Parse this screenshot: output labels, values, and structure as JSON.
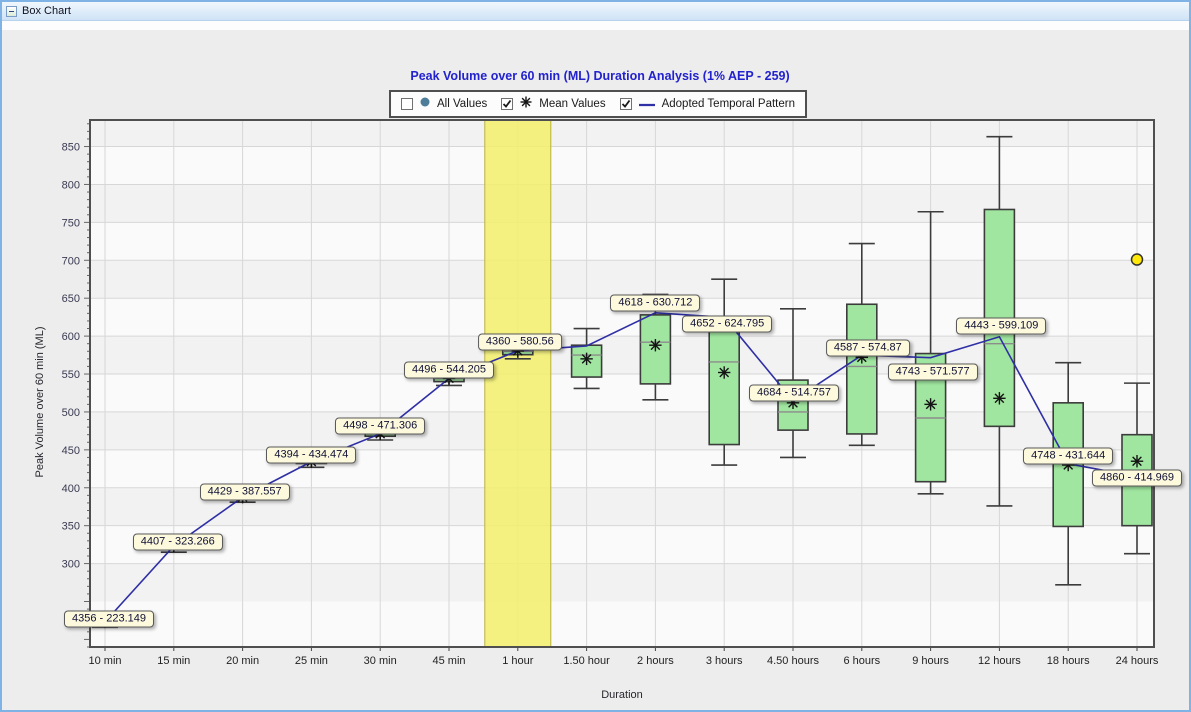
{
  "window": {
    "title": "Box Chart"
  },
  "colors": {
    "title_text": "#2222CE",
    "box_fill": "#A0E6A0",
    "box_stroke": "#3C3C3C",
    "median_line": "#8C8C8C",
    "band_fill": "#F3EF6E",
    "band_edge": "#B9B13E",
    "adopted_line": "#2F2FA6",
    "mean_marker": "#141414",
    "annotation_bg": "#FCF9DC",
    "annotation_border": "#5A5A5A",
    "outlier_fill": "#FFE80A",
    "legend_circle": "#4D7D99",
    "gridline": "#D7D7D7",
    "plot_border": "#4F4F4F"
  },
  "chart_data": {
    "type": "box",
    "title": "Peak Volume over 60 min (ML) Duration Analysis (1% AEP - 259)",
    "xlabel": "Duration",
    "ylabel": "Peak Volume over 60 min (ML)",
    "ylim": [
      190,
      885
    ],
    "y_ticks": [
      300,
      350,
      400,
      450,
      500,
      550,
      600,
      650,
      700,
      750,
      800,
      850
    ],
    "grid": true,
    "legend_position": "top-center",
    "legend": [
      {
        "label": "All Values",
        "checked": false,
        "marker": "circle"
      },
      {
        "label": "Mean Values",
        "checked": true,
        "marker": "asterisk"
      },
      {
        "label": "Adopted Temporal Pattern",
        "checked": true,
        "marker": "line"
      }
    ],
    "highlight_category": "1 hour",
    "categories": [
      "10 min",
      "15 min",
      "20 min",
      "25 min",
      "30 min",
      "45 min",
      "1 hour",
      "1.50 hour",
      "2 hours",
      "3 hours",
      "4.50 hours",
      "6 hours",
      "9 hours",
      "12 hours",
      "18 hours",
      "24 hours"
    ],
    "series": [
      {
        "duration": "10 min",
        "min": 216,
        "q1": 221,
        "median": 223,
        "q3": 225.5,
        "max": 230,
        "mean": 223.1,
        "adopted": 223.149,
        "pattern": "4356",
        "label": "4356 -  223.149"
      },
      {
        "duration": "15 min",
        "min": 315,
        "q1": 321,
        "median": 323,
        "q3": 325.5,
        "max": 331,
        "mean": 323.3,
        "adopted": 323.266,
        "pattern": "4407",
        "label": "4407 -  323.266"
      },
      {
        "duration": "20 min",
        "min": 381,
        "q1": 385.5,
        "median": 387.5,
        "q3": 389.5,
        "max": 394,
        "mean": 387.6,
        "adopted": 387.557,
        "pattern": "4429",
        "label": "4429 -  387.557"
      },
      {
        "duration": "25 min",
        "min": 427,
        "q1": 432,
        "median": 434.5,
        "q3": 437,
        "max": 442,
        "mean": 434.5,
        "adopted": 434.474,
        "pattern": "4394",
        "label": "4394 -  434.474"
      },
      {
        "duration": "30 min",
        "min": 463,
        "q1": 468,
        "median": 471,
        "q3": 474.5,
        "max": 479,
        "mean": 471.3,
        "adopted": 471.306,
        "pattern": "4498",
        "label": "4498 -  471.306"
      },
      {
        "duration": "45 min",
        "min": 535,
        "q1": 540,
        "median": 544,
        "q3": 548.5,
        "max": 553,
        "mean": 544.2,
        "adopted": 544.205,
        "pattern": "4496",
        "label": "4496 -  544.205"
      },
      {
        "duration": "1 hour",
        "min": 570,
        "q1": 575.5,
        "median": 580,
        "q3": 584.5,
        "max": 589,
        "mean": 580.5,
        "adopted": 580.56,
        "pattern": "4360",
        "label": "4360 -  580.56"
      },
      {
        "duration": "1.50 hour",
        "min": 531,
        "q1": 546,
        "median": 575,
        "q3": 588,
        "max": 610,
        "mean": 570,
        "adopted": 587,
        "pattern": null,
        "label": null
      },
      {
        "duration": "2 hours",
        "min": 516,
        "q1": 537,
        "median": 592,
        "q3": 628,
        "max": 655,
        "mean": 588,
        "adopted": 630.712,
        "pattern": "4618",
        "label": "4618 -  630.712"
      },
      {
        "duration": "3 hours",
        "min": 430,
        "q1": 457,
        "median": 566,
        "q3": 611,
        "max": 675,
        "mean": 552,
        "adopted": 624.795,
        "pattern": "4652",
        "label": "4652 -  624.795"
      },
      {
        "duration": "4.50 hours",
        "min": 440,
        "q1": 476,
        "median": 500,
        "q3": 542,
        "max": 636,
        "mean": 512,
        "adopted": 514.757,
        "pattern": "4684",
        "label": "4684 -  514.757"
      },
      {
        "duration": "6 hours",
        "min": 456,
        "q1": 471,
        "median": 560,
        "q3": 642,
        "max": 722,
        "mean": 572,
        "adopted": 574.87,
        "pattern": "4587",
        "label": "4587 -  574.87"
      },
      {
        "duration": "9 hours",
        "min": 392,
        "q1": 408,
        "median": 492,
        "q3": 577,
        "max": 764,
        "mean": 510,
        "adopted": 571.577,
        "pattern": "4743",
        "label": "4743 -  571.577"
      },
      {
        "duration": "12 hours",
        "min": 376,
        "q1": 481,
        "median": 590,
        "q3": 767,
        "max": 863,
        "mean": 518,
        "adopted": 599.109,
        "pattern": "4443",
        "label": "4443 -  599.109"
      },
      {
        "duration": "18 hours",
        "min": 272,
        "q1": 349,
        "median": 435,
        "q3": 512,
        "max": 565,
        "mean": 430,
        "adopted": 431.644,
        "pattern": "4748",
        "label": "4748 -  431.644"
      },
      {
        "duration": "24 hours",
        "min": 313,
        "q1": 350,
        "median": 420,
        "q3": 470,
        "max": 538,
        "mean": 435,
        "adopted": 414.969,
        "pattern": "4860",
        "label": "4860 -  414.969"
      }
    ],
    "outliers": [
      {
        "category": "24 hours",
        "value": 701
      }
    ]
  }
}
